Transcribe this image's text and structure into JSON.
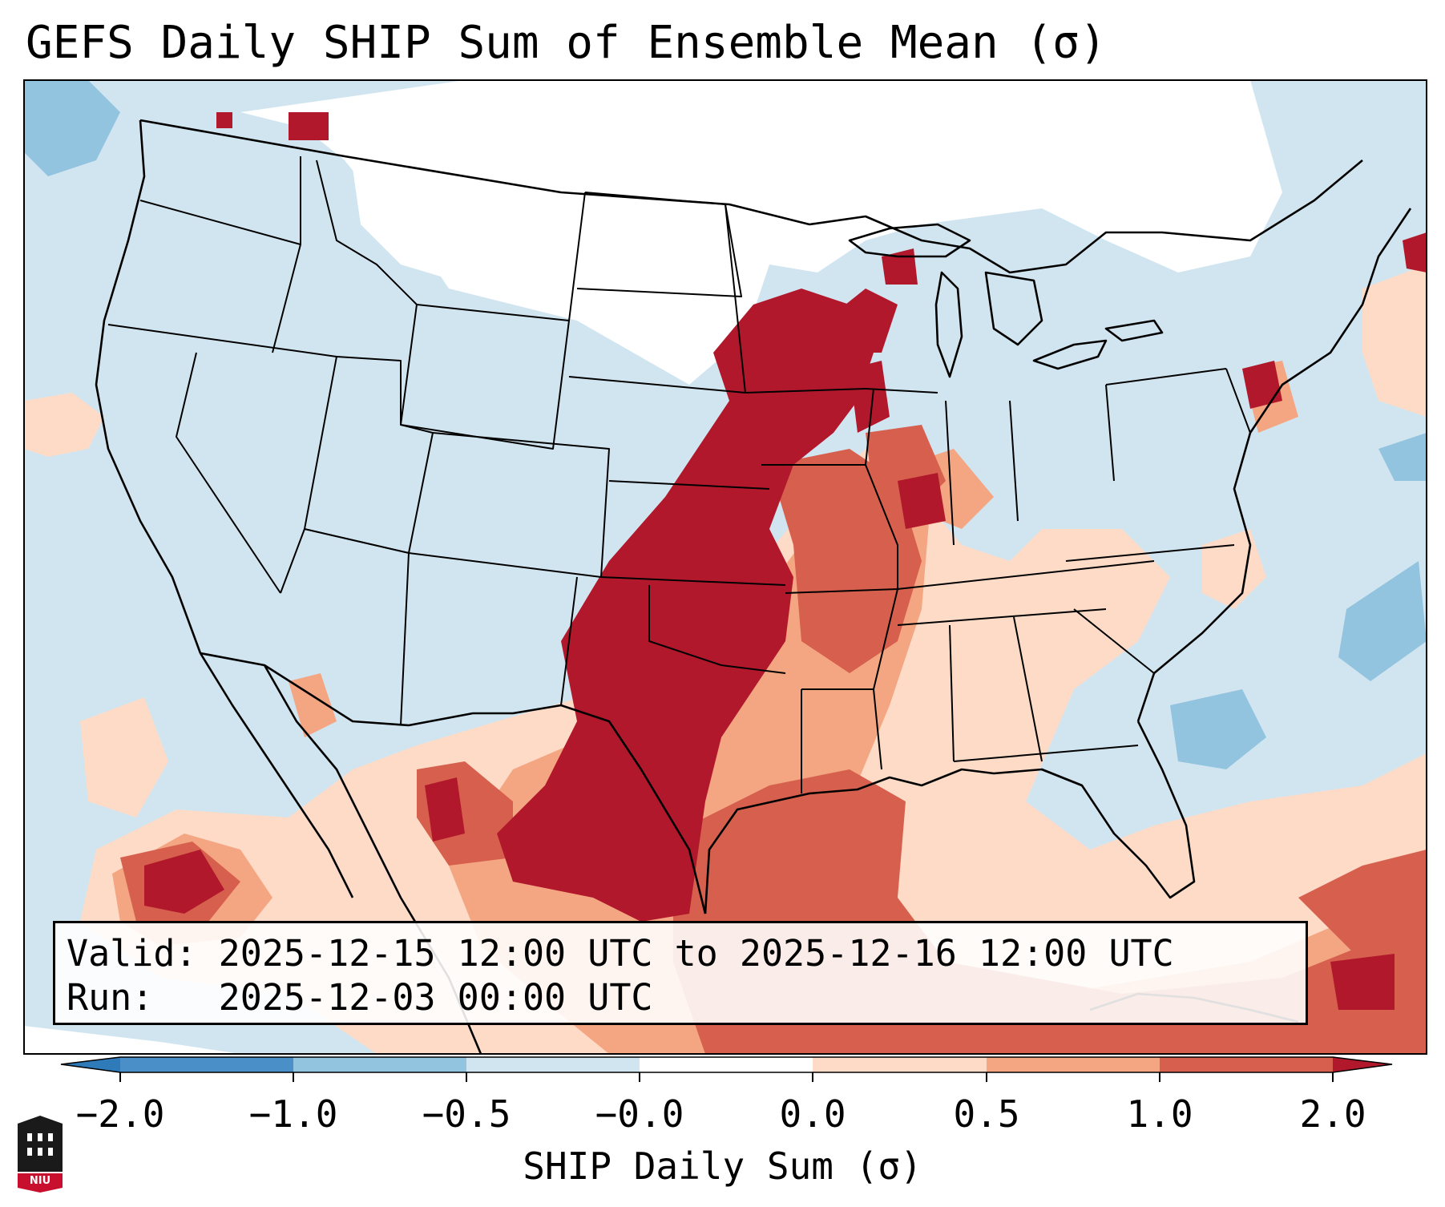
{
  "title": "GEFS Daily SHIP Sum of Ensemble Mean (σ)",
  "info": {
    "valid_label": "Valid:",
    "valid_value": "2025-12-15 12:00 UTC to 2025-12-16 12:00 UTC",
    "run_label": "Run:",
    "run_value": "2025-12-03 00:00 UTC"
  },
  "colorbar": {
    "label": "SHIP Daily Sum (σ)",
    "ticks": [
      "−2.0",
      "−1.0",
      "−0.5",
      "−0.0",
      "0.0",
      "0.5",
      "1.0",
      "2.0"
    ],
    "bins": [
      {
        "range": "< -2.0",
        "color": "#2f7ab9"
      },
      {
        "range": "-2.0 to -1.0",
        "color": "#4a8fc7"
      },
      {
        "range": "-1.0 to -0.5",
        "color": "#92c3df"
      },
      {
        "range": "-0.5 to -0.0",
        "color": "#d1e5f0"
      },
      {
        "range": "-0.0 to 0.0",
        "color": "#ffffff"
      },
      {
        "range": "0.0 to 0.5",
        "color": "#fddbc7"
      },
      {
        "range": "0.5 to 1.0",
        "color": "#f4a582"
      },
      {
        "range": "1.0 to 2.0",
        "color": "#d6604d"
      },
      {
        "range": "> 2.0",
        "color": "#b2182b"
      }
    ]
  },
  "logo": {
    "text": "NIU"
  },
  "colors": {
    "ocean": "#d1e5f0",
    "neutral": "#ffffff",
    "pos_low": "#fddbc7",
    "pos_mid": "#f4a582",
    "pos_high": "#d6604d",
    "pos_max": "#b2182b",
    "neg_mid": "#92c3df"
  }
}
